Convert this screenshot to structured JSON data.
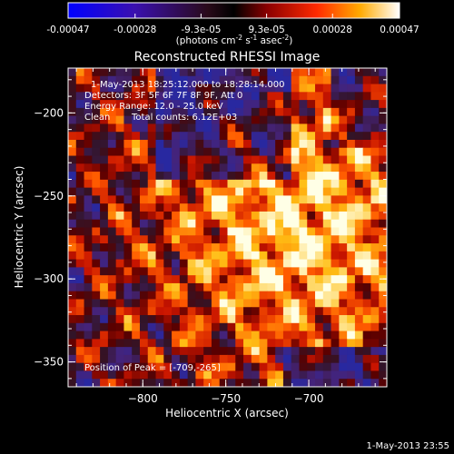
{
  "chart_data": {
    "type": "heatmap",
    "title": "Reconstructed RHESSI Image",
    "xlabel": "Heliocentric X (arcsec)",
    "ylabel": "Heliocentric Y (arcsec)",
    "xlim": [
      -845,
      -653
    ],
    "ylim": [
      -365,
      -173
    ],
    "x_ticks": [
      -800,
      -750,
      -700
    ],
    "y_ticks": [
      -350,
      -300,
      -250,
      -200
    ],
    "colorbar": {
      "range": [
        -0.00047,
        0.00047
      ],
      "tick_values": [
        -0.00047,
        -0.00028,
        -9.3e-05,
        9.3e-05,
        0.00028,
        0.00047
      ],
      "tick_labels": [
        "-0.00047",
        "-0.00028",
        "-9.3e-05",
        "9.3e-05",
        "0.00028",
        "0.00047"
      ],
      "unit_prefix": "(photons cm",
      "unit_sup1": "-2",
      "unit_mid": " s",
      "unit_sup2": "-1",
      "unit_mid2": " asec",
      "unit_sup3": "-2",
      "unit_suffix": ")"
    },
    "annotations": {
      "time_range": "1-May-2013 18:25:12.000 to 18:28:14.000",
      "detectors": "Detectors: 3F 5F 6F 7F 8F 9F, Att 0",
      "energy": "Energy Range: 12.0 - 25.0 keV",
      "method": "Clean",
      "counts": "Total counts: 6.12E+03",
      "peak": "Position of Peak = [-709,-265]"
    },
    "peak_position": [
      -709,
      -265
    ],
    "grid": false
  },
  "footer_timestamp": "1-May-2013 23:55"
}
